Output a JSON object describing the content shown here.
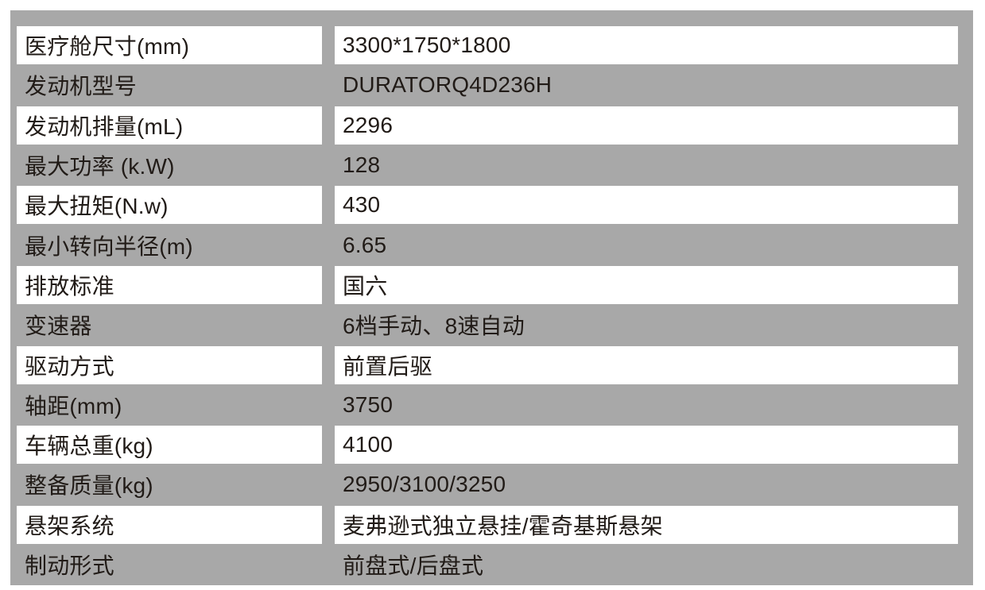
{
  "colors": {
    "panel_background": "#a8a8a8",
    "highlight_cell_background": "#ffffff",
    "text": "#211b17"
  },
  "spec_table": {
    "rows": [
      {
        "label": "医疗舱尺寸(mm)",
        "value": "3300*1750*1800",
        "highlight": true
      },
      {
        "label": "发动机型号",
        "value": "DURATORQ4D236H",
        "highlight": false
      },
      {
        "label": "发动机排量(mL)",
        "value": "2296",
        "highlight": true
      },
      {
        "label": "最大功率 (k.W)",
        "value": "128",
        "highlight": false
      },
      {
        "label": "最大扭矩(N.w)",
        "value": "430",
        "highlight": true
      },
      {
        "label": "最小转向半径(m)",
        "value": "6.65",
        "highlight": false
      },
      {
        "label": "排放标准",
        "value": "国六",
        "highlight": true
      },
      {
        "label": "变速器",
        "value": "6档手动、8速自动",
        "highlight": false
      },
      {
        "label": "驱动方式",
        "value": "前置后驱",
        "highlight": true
      },
      {
        "label": "轴距(mm)",
        "value": "3750",
        "highlight": false
      },
      {
        "label": "车辆总重(kg)",
        "value": "4100",
        "highlight": true
      },
      {
        "label": "整备质量(kg)",
        "value": "2950/3100/3250",
        "highlight": false
      },
      {
        "label": "悬架系统",
        "value": "麦弗逊式独立悬挂/霍奇基斯悬架",
        "highlight": true
      },
      {
        "label": "制动形式",
        "value": "前盘式/后盘式",
        "highlight": false
      }
    ]
  }
}
